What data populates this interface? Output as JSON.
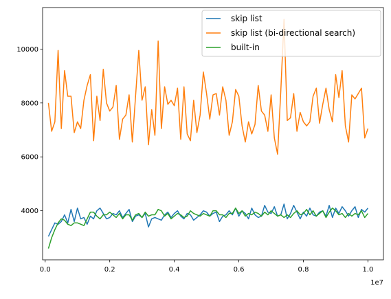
{
  "chart_data": {
    "type": "line",
    "title": "",
    "xlabel": "",
    "ylabel": "",
    "x_offset_label": "1e7",
    "xlim": [
      -0.008,
      1.048
    ],
    "ylim": [
      2180,
      11540
    ],
    "x_ticks": [
      0.0,
      0.2,
      0.4,
      0.6,
      0.8,
      1.0
    ],
    "x_tick_labels": [
      "0.0",
      "0.2",
      "0.4",
      "0.6",
      "0.8",
      "1.0"
    ],
    "y_ticks": [
      4000,
      6000,
      8000,
      10000
    ],
    "y_tick_labels": [
      "4000",
      "6000",
      "8000",
      "10000"
    ],
    "grid": false,
    "legend_position": "upper-right",
    "x": [
      0.01,
      0.02,
      0.03,
      0.04,
      0.05,
      0.06,
      0.07,
      0.08,
      0.09,
      0.1,
      0.11,
      0.12,
      0.13,
      0.14,
      0.15,
      0.16,
      0.17,
      0.18,
      0.19,
      0.2,
      0.21,
      0.22,
      0.23,
      0.24,
      0.25,
      0.26,
      0.27,
      0.28,
      0.29,
      0.3,
      0.31,
      0.32,
      0.33,
      0.34,
      0.35,
      0.36,
      0.37,
      0.38,
      0.39,
      0.4,
      0.41,
      0.42,
      0.43,
      0.44,
      0.45,
      0.46,
      0.47,
      0.48,
      0.49,
      0.5,
      0.51,
      0.52,
      0.53,
      0.54,
      0.55,
      0.56,
      0.57,
      0.58,
      0.59,
      0.6,
      0.61,
      0.62,
      0.63,
      0.64,
      0.65,
      0.66,
      0.67,
      0.68,
      0.69,
      0.7,
      0.71,
      0.72,
      0.73,
      0.74,
      0.75,
      0.76,
      0.77,
      0.78,
      0.79,
      0.8,
      0.81,
      0.82,
      0.83,
      0.84,
      0.85,
      0.86,
      0.87,
      0.88,
      0.89,
      0.9,
      0.91,
      0.92,
      0.93,
      0.94,
      0.95,
      0.96,
      0.97,
      0.98,
      0.99,
      1.0
    ],
    "series": [
      {
        "name": "skip list",
        "color": "#1f77b4",
        "values": [
          3050,
          3300,
          3550,
          3500,
          3600,
          3850,
          3550,
          4050,
          3600,
          4100,
          3700,
          3750,
          3500,
          3800,
          3700,
          4000,
          4100,
          3900,
          3700,
          3750,
          3900,
          3850,
          4000,
          3750,
          3900,
          4050,
          3600,
          3800,
          3850,
          3750,
          3900,
          3400,
          3700,
          3750,
          3700,
          3650,
          3850,
          3950,
          3750,
          3900,
          4000,
          3800,
          3700,
          3900,
          3850,
          3650,
          3750,
          3850,
          4000,
          3950,
          3800,
          3900,
          3950,
          3600,
          3800,
          3850,
          4000,
          3850,
          4100,
          3800,
          4000,
          3900,
          3700,
          4100,
          3850,
          3750,
          3800,
          4200,
          3950,
          3900,
          4150,
          3800,
          3850,
          4250,
          3700,
          3900,
          4200,
          3950,
          3700,
          3950,
          3800,
          4100,
          3850,
          3800,
          3950,
          4000,
          3800,
          4200,
          3750,
          4100,
          3900,
          4150,
          4000,
          3800,
          4000,
          4150,
          3750,
          4050,
          3950,
          4100
        ]
      },
      {
        "name": "skip list (bi-directional search)",
        "color": "#ff7f0e",
        "values": [
          8000,
          6950,
          7300,
          9950,
          7050,
          9200,
          8250,
          8250,
          6900,
          7300,
          7050,
          8100,
          8650,
          9050,
          6600,
          8250,
          7350,
          9250,
          8000,
          7700,
          7850,
          8650,
          6650,
          7400,
          7550,
          8300,
          6550,
          8250,
          9950,
          8100,
          8600,
          6450,
          7750,
          6800,
          10300,
          7050,
          8600,
          7950,
          8100,
          7900,
          8550,
          6650,
          8600,
          6850,
          6600,
          8100,
          6900,
          7550,
          9150,
          8350,
          7400,
          8300,
          8350,
          7550,
          8600,
          8100,
          6800,
          7300,
          8500,
          8250,
          7150,
          6550,
          7300,
          6850,
          7200,
          8650,
          7700,
          7550,
          6950,
          8300,
          6700,
          6100,
          8450,
          11100,
          7350,
          7450,
          8350,
          6950,
          7650,
          7300,
          7150,
          7300,
          8250,
          8550,
          7250,
          7950,
          8550,
          7750,
          7300,
          9050,
          8200,
          9200,
          7150,
          6550,
          8300,
          8150,
          8350,
          8550,
          6700,
          7050
        ]
      },
      {
        "name": "built-in",
        "color": "#2ca02c",
        "values": [
          2600,
          3000,
          3300,
          3550,
          3700,
          3650,
          3500,
          3450,
          3550,
          3550,
          3500,
          3450,
          3700,
          3950,
          3950,
          3800,
          3700,
          3850,
          3850,
          3950,
          3850,
          3750,
          3900,
          3700,
          3850,
          3850,
          3650,
          3850,
          3900,
          3750,
          3950,
          3800,
          3850,
          3850,
          4050,
          4000,
          3800,
          3900,
          3700,
          3800,
          3900,
          3850,
          3750,
          3800,
          4000,
          3900,
          3850,
          3800,
          3900,
          3850,
          3800,
          4000,
          4000,
          3850,
          3850,
          3750,
          3900,
          3900,
          4100,
          3900,
          4000,
          3800,
          3900,
          3850,
          3950,
          3900,
          3800,
          3950,
          3850,
          4000,
          3900,
          3800,
          3850,
          3750,
          3850,
          3750,
          3900,
          4000,
          3850,
          3900,
          4050,
          3850,
          4000,
          3800,
          3900,
          4000,
          3750,
          3950,
          4100,
          4000,
          3850,
          3900,
          3750,
          3900,
          3800,
          3900,
          3850,
          4000,
          3750,
          3900
        ]
      }
    ]
  }
}
